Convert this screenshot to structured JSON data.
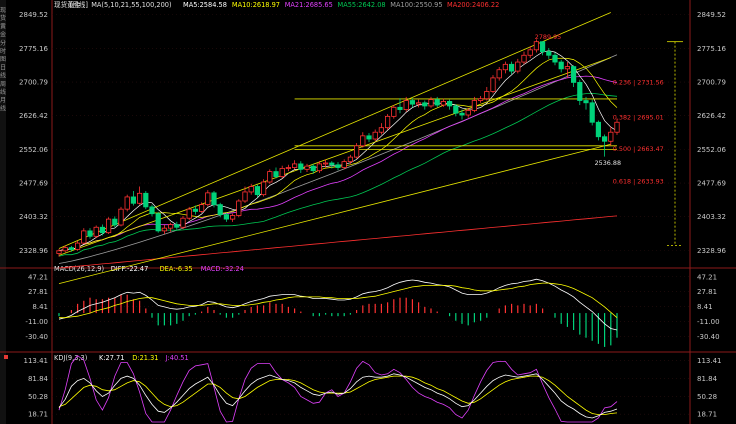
{
  "left_rail": [
    "现",
    "货",
    "黄",
    "金",
    "分",
    "时",
    "图",
    "日",
    "线",
    "周",
    "线",
    "月",
    "线"
  ],
  "header": {
    "symbol": "现货黄金",
    "period": "[日线]",
    "ma_params": "MA(5,10,21,55,100,200)",
    "ma5": "MA5:2584.58",
    "ma10": "MA10:2618.97",
    "ma21": "MA21:2685.65",
    "ma55": "MA55:2642.08",
    "ma100": "MA100:2550.95",
    "ma200": "MA200:2406.22"
  },
  "macd_header": {
    "title": "MACD(26,12,9)",
    "diff": "DIFF:-22.47",
    "dea": "DEA:-6.35",
    "macd": "MACD:-32.24"
  },
  "kdj_header": {
    "title": "KDJ(9,3,3)",
    "k": "K:27.71",
    "d": "D:21.31",
    "j": "J:40.51"
  },
  "colors": {
    "up": "#ff3232",
    "down": "#00d27a",
    "ma5": "#ffffff",
    "ma10": "#ffff00",
    "ma21": "#e040fb",
    "ma55": "#00c853",
    "ma100": "#9e9e9e",
    "ma200": "#ff3030",
    "trend": "#e6e600",
    "fib": "#ff3030"
  },
  "chart_data": [
    {
      "type": "candlestick",
      "title": "现货黄金 [日线]",
      "ylim": [
        2290,
        2860
      ],
      "y_ticks": [
        "2849.52",
        "2775.16",
        "2700.79",
        "2626.42",
        "2552.06",
        "2477.69",
        "2403.32",
        "2328.96"
      ],
      "candles": [
        [
          2322,
          2328,
          2315,
          2332
        ],
        [
          2328,
          2335,
          2324,
          2340
        ],
        [
          2335,
          2331,
          2326,
          2339
        ],
        [
          2331,
          2345,
          2328,
          2350
        ],
        [
          2345,
          2372,
          2343,
          2378
        ],
        [
          2372,
          2360,
          2355,
          2378
        ],
        [
          2360,
          2380,
          2356,
          2384
        ],
        [
          2380,
          2368,
          2362,
          2386
        ],
        [
          2368,
          2398,
          2365,
          2402
        ],
        [
          2398,
          2385,
          2380,
          2404
        ],
        [
          2385,
          2420,
          2382,
          2425
        ],
        [
          2420,
          2447,
          2415,
          2452
        ],
        [
          2447,
          2433,
          2428,
          2460
        ],
        [
          2433,
          2455,
          2430,
          2470
        ],
        [
          2455,
          2425,
          2420,
          2460
        ],
        [
          2425,
          2410,
          2404,
          2430
        ],
        [
          2410,
          2372,
          2368,
          2414
        ],
        [
          2372,
          2378,
          2365,
          2385
        ],
        [
          2378,
          2386,
          2370,
          2390
        ],
        [
          2386,
          2380,
          2374,
          2392
        ],
        [
          2380,
          2400,
          2376,
          2405
        ],
        [
          2400,
          2420,
          2396,
          2425
        ],
        [
          2420,
          2415,
          2408,
          2428
        ],
        [
          2415,
          2430,
          2412,
          2435
        ],
        [
          2430,
          2456,
          2426,
          2462
        ],
        [
          2456,
          2430,
          2424,
          2460
        ],
        [
          2430,
          2408,
          2402,
          2434
        ],
        [
          2408,
          2398,
          2392,
          2412
        ],
        [
          2398,
          2406,
          2392,
          2410
        ],
        [
          2406,
          2438,
          2402,
          2442
        ],
        [
          2438,
          2458,
          2434,
          2470
        ],
        [
          2458,
          2470,
          2452,
          2476
        ],
        [
          2470,
          2452,
          2446,
          2474
        ],
        [
          2452,
          2480,
          2448,
          2486
        ],
        [
          2480,
          2503,
          2476,
          2508
        ],
        [
          2503,
          2492,
          2488,
          2512
        ],
        [
          2492,
          2510,
          2488,
          2516
        ],
        [
          2510,
          2512,
          2504,
          2518
        ],
        [
          2512,
          2520,
          2508,
          2528
        ],
        [
          2520,
          2508,
          2500,
          2526
        ],
        [
          2508,
          2515,
          2502,
          2520
        ],
        [
          2515,
          2505,
          2498,
          2520
        ],
        [
          2505,
          2520,
          2500,
          2526
        ],
        [
          2520,
          2522,
          2512,
          2530
        ],
        [
          2522,
          2518,
          2510,
          2526
        ],
        [
          2518,
          2512,
          2506,
          2524
        ],
        [
          2512,
          2525,
          2508,
          2530
        ],
        [
          2525,
          2535,
          2520,
          2540
        ],
        [
          2535,
          2560,
          2532,
          2566
        ],
        [
          2560,
          2582,
          2556,
          2590
        ],
        [
          2582,
          2575,
          2568,
          2588
        ],
        [
          2575,
          2590,
          2570,
          2596
        ],
        [
          2590,
          2600,
          2585,
          2610
        ],
        [
          2600,
          2625,
          2595,
          2630
        ],
        [
          2625,
          2645,
          2620,
          2650
        ],
        [
          2645,
          2640,
          2632,
          2665
        ],
        [
          2640,
          2660,
          2635,
          2668
        ],
        [
          2660,
          2652,
          2645,
          2665
        ],
        [
          2652,
          2655,
          2645,
          2662
        ],
        [
          2655,
          2648,
          2640,
          2660
        ],
        [
          2648,
          2662,
          2644,
          2668
        ],
        [
          2662,
          2650,
          2645,
          2668
        ],
        [
          2650,
          2658,
          2646,
          2664
        ],
        [
          2658,
          2648,
          2640,
          2662
        ],
        [
          2648,
          2632,
          2625,
          2652
        ],
        [
          2632,
          2628,
          2618,
          2640
        ],
        [
          2628,
          2638,
          2622,
          2644
        ],
        [
          2638,
          2660,
          2634,
          2668
        ],
        [
          2660,
          2664,
          2655,
          2670
        ],
        [
          2664,
          2680,
          2660,
          2690
        ],
        [
          2680,
          2710,
          2676,
          2716
        ],
        [
          2710,
          2728,
          2704,
          2734
        ],
        [
          2728,
          2740,
          2720,
          2746
        ],
        [
          2740,
          2725,
          2718,
          2746
        ],
        [
          2725,
          2745,
          2720,
          2752
        ],
        [
          2745,
          2760,
          2740,
          2768
        ],
        [
          2760,
          2772,
          2754,
          2780
        ],
        [
          2772,
          2790,
          2766,
          2795
        ],
        [
          2790,
          2768,
          2760,
          2790
        ],
        [
          2768,
          2760,
          2752,
          2776
        ],
        [
          2760,
          2745,
          2738,
          2766
        ],
        [
          2745,
          2730,
          2722,
          2750
        ],
        [
          2730,
          2735,
          2710,
          2745
        ],
        [
          2735,
          2700,
          2690,
          2738
        ],
        [
          2700,
          2660,
          2650,
          2706
        ],
        [
          2660,
          2655,
          2640,
          2668
        ],
        [
          2655,
          2612,
          2605,
          2662
        ],
        [
          2612,
          2580,
          2572,
          2616
        ],
        [
          2580,
          2570,
          2536,
          2585
        ],
        [
          2570,
          2590,
          2560,
          2602
        ],
        [
          2590,
          2612,
          2584,
          2620
        ]
      ],
      "ma_tail_labels": {
        "ma5": "2584.58",
        "ma10": "2618.97",
        "ma21": "2685.65",
        "ma55": "2642.08",
        "ma100": "2550.95",
        "ma200": "2406.22"
      },
      "annotations": {
        "high": "2789.95",
        "low": "2536.88",
        "fib_0236": "0.236 | 2731.56",
        "fib_0382": "0.382 | 2695.01",
        "fib_0500": "0.500 | 2663.47",
        "fib_0618": "0.618 | 2633.93"
      }
    },
    {
      "type": "bar_line",
      "title": "MACD(26,12,9)",
      "ylim": [
        -48,
        56
      ],
      "y_ticks": [
        "47.21",
        "27.81",
        "8.41",
        "-11.00",
        "-30.40"
      ],
      "diff": [
        -8,
        -6,
        -3,
        2,
        6,
        10,
        12,
        14,
        17,
        20,
        24,
        27,
        26,
        27,
        23,
        17,
        10,
        8,
        6,
        5,
        6,
        8,
        9,
        11,
        15,
        14,
        11,
        8,
        7,
        9,
        12,
        15,
        17,
        19,
        22,
        23,
        24,
        24,
        24,
        22,
        21,
        19,
        19,
        19,
        18,
        17,
        17,
        18,
        21,
        25,
        27,
        28,
        30,
        33,
        37,
        40,
        42,
        43,
        42,
        40,
        39,
        37,
        36,
        34,
        30,
        26,
        24,
        24,
        24,
        26,
        29,
        33,
        36,
        38,
        39,
        41,
        42,
        44,
        42,
        39,
        35,
        30,
        26,
        21,
        14,
        8,
        2,
        -6,
        -14,
        -20,
        -22
      ],
      "dea": [
        -6,
        -6,
        -5,
        -4,
        -2,
        0,
        3,
        5,
        7,
        10,
        12,
        15,
        17,
        19,
        20,
        20,
        18,
        16,
        14,
        12,
        11,
        10,
        10,
        10,
        11,
        12,
        12,
        11,
        10,
        10,
        10,
        11,
        12,
        14,
        15,
        17,
        18,
        20,
        21,
        21,
        21,
        21,
        21,
        20,
        20,
        19,
        19,
        19,
        19,
        20,
        21,
        22,
        24,
        26,
        28,
        30,
        32,
        34,
        35,
        36,
        36,
        36,
        36,
        36,
        35,
        33,
        32,
        30,
        29,
        29,
        29,
        30,
        31,
        32,
        34,
        35,
        37,
        38,
        39,
        39,
        38,
        37,
        35,
        32,
        28,
        24,
        20,
        14,
        8,
        1,
        -6
      ],
      "macd": [
        -4,
        0,
        4,
        12,
        16,
        20,
        18,
        18,
        20,
        20,
        24,
        24,
        18,
        16,
        6,
        -6,
        -16,
        -16,
        -16,
        -14,
        -10,
        -4,
        -2,
        2,
        8,
        4,
        -2,
        -6,
        -6,
        -2,
        4,
        8,
        10,
        10,
        14,
        12,
        12,
        8,
        6,
        2,
        0,
        -4,
        -4,
        -2,
        -4,
        -4,
        -4,
        -2,
        4,
        10,
        12,
        12,
        12,
        14,
        18,
        20,
        20,
        18,
        14,
        8,
        6,
        2,
        0,
        -4,
        -10,
        -14,
        -16,
        -12,
        -10,
        -6,
        0,
        6,
        10,
        12,
        10,
        12,
        10,
        12,
        6,
        0,
        -6,
        -14,
        -18,
        -22,
        -28,
        -32,
        -36,
        -40,
        -44,
        -42,
        -32
      ]
    },
    {
      "type": "line",
      "title": "KDJ(9,3,3)",
      "ylim": [
        5,
        125
      ],
      "y_ticks": [
        "113.41",
        "81.84",
        "50.28",
        "18.71"
      ],
      "k": [
        30,
        45,
        68,
        78,
        82,
        74,
        60,
        50,
        56,
        70,
        82,
        86,
        82,
        70,
        52,
        36,
        24,
        22,
        30,
        40,
        52,
        64,
        72,
        78,
        84,
        70,
        52,
        38,
        34,
        46,
        60,
        72,
        80,
        84,
        88,
        84,
        80,
        78,
        74,
        66,
        60,
        54,
        52,
        56,
        58,
        54,
        56,
        64,
        76,
        84,
        86,
        84,
        84,
        86,
        90,
        88,
        84,
        78,
        72,
        66,
        62,
        56,
        52,
        46,
        38,
        32,
        34,
        44,
        56,
        68,
        78,
        84,
        88,
        86,
        84,
        86,
        88,
        90,
        80,
        68,
        56,
        42,
        34,
        28,
        20,
        14,
        12,
        16,
        22,
        24,
        28
      ],
      "d": [
        32,
        36,
        46,
        56,
        66,
        70,
        68,
        62,
        60,
        62,
        68,
        74,
        78,
        76,
        68,
        56,
        44,
        36,
        32,
        34,
        40,
        48,
        56,
        64,
        72,
        72,
        66,
        56,
        48,
        46,
        50,
        58,
        66,
        72,
        78,
        80,
        80,
        80,
        78,
        74,
        68,
        62,
        58,
        56,
        56,
        56,
        56,
        58,
        64,
        70,
        76,
        80,
        82,
        84,
        86,
        86,
        86,
        84,
        80,
        74,
        70,
        64,
        60,
        54,
        48,
        42,
        38,
        40,
        46,
        54,
        62,
        70,
        76,
        80,
        82,
        84,
        86,
        86,
        84,
        78,
        70,
        60,
        50,
        42,
        34,
        26,
        20,
        18,
        18,
        20,
        21
      ],
      "j": [
        26,
        62,
        108,
        122,
        114,
        82,
        44,
        26,
        48,
        86,
        110,
        110,
        90,
        58,
        20,
        4,
        -10,
        -6,
        26,
        52,
        76,
        96,
        104,
        106,
        108,
        66,
        24,
        2,
        6,
        46,
        80,
        100,
        108,
        108,
        108,
        92,
        80,
        74,
        66,
        50,
        44,
        38,
        40,
        56,
        62,
        50,
        56,
        76,
        100,
        112,
        106,
        92,
        88,
        90,
        98,
        92,
        80,
        66,
        56,
        50,
        46,
        40,
        36,
        30,
        18,
        12,
        26,
        52,
        76,
        96,
        110,
        112,
        112,
        98,
        88,
        90,
        92,
        98,
        72,
        48,
        28,
        6,
        2,
        0,
        -8,
        -10,
        -4,
        12,
        30,
        32,
        41
      ]
    }
  ]
}
